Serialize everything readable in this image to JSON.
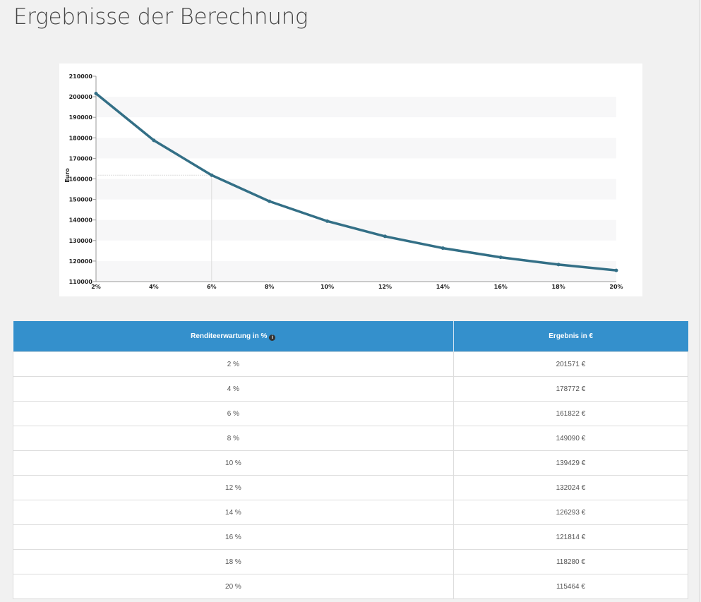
{
  "page": {
    "title": "Ergebnisse der Berechnung"
  },
  "chart_data": {
    "type": "line",
    "title": "",
    "xlabel": "",
    "ylabel": "Euro",
    "categories": [
      "2%",
      "4%",
      "6%",
      "8%",
      "10%",
      "12%",
      "14%",
      "16%",
      "18%",
      "20%"
    ],
    "series": [
      {
        "name": "Ergebnis",
        "values": [
          201571,
          178772,
          161822,
          149090,
          139429,
          132024,
          126293,
          121814,
          118280,
          115464
        ]
      }
    ],
    "ylim": [
      110000,
      210000
    ],
    "yticks": [
      110000,
      120000,
      130000,
      140000,
      150000,
      160000,
      170000,
      180000,
      190000,
      200000,
      210000
    ],
    "highlight_index": 2,
    "color": "#336f86",
    "grid": true
  },
  "table": {
    "headers": [
      "Renditeerwartung in %",
      "Ergebnis in €"
    ],
    "info_icon": "i",
    "rows": [
      [
        "2 %",
        "201571 €"
      ],
      [
        "4 %",
        "178772 €"
      ],
      [
        "6 %",
        "161822 €"
      ],
      [
        "8 %",
        "149090 €"
      ],
      [
        "10 %",
        "139429 €"
      ],
      [
        "12 %",
        "132024 €"
      ],
      [
        "14 %",
        "126293 €"
      ],
      [
        "16 %",
        "121814 €"
      ],
      [
        "18 %",
        "118280 €"
      ],
      [
        "20 %",
        "115464 €"
      ]
    ]
  }
}
